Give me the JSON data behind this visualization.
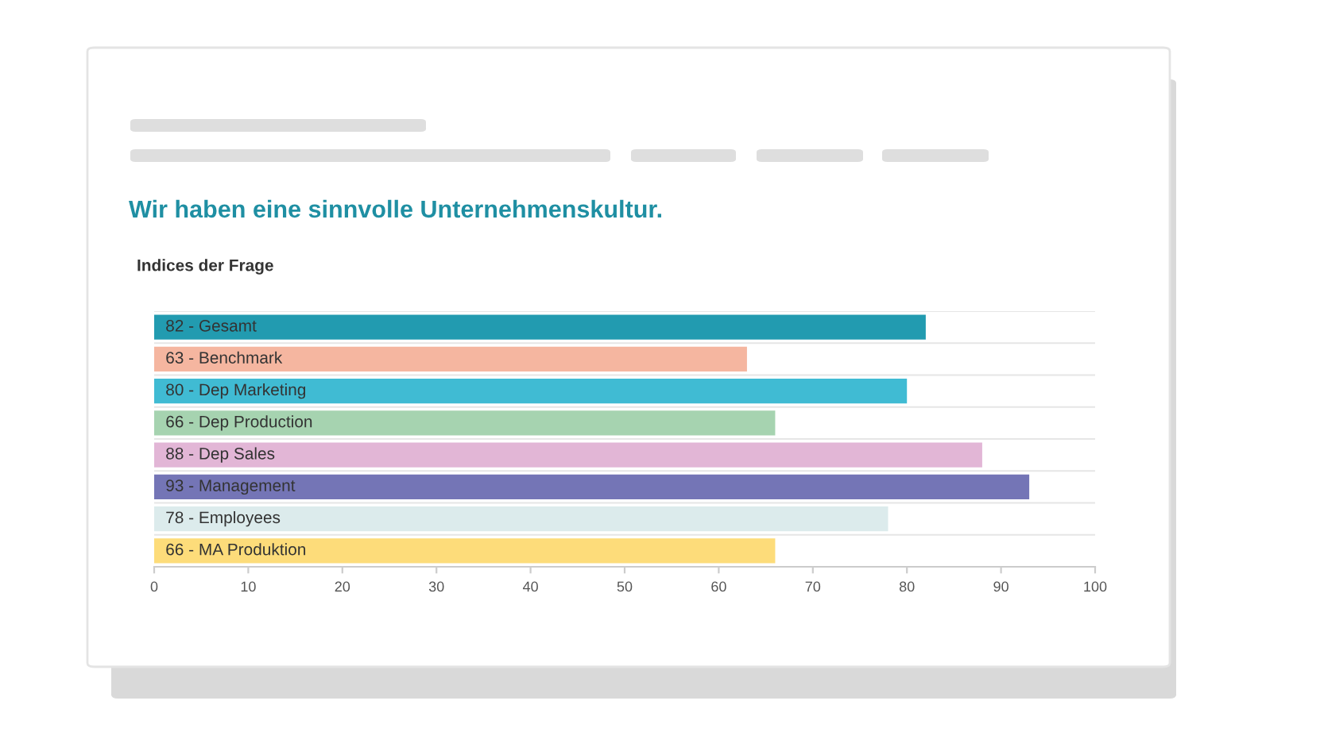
{
  "chart_data": {
    "type": "bar",
    "orientation": "horizontal",
    "title": "Wir haben eine sinnvolle Unternehmenskultur.",
    "subtitle": "Indices der Frage",
    "categories": [
      "82 - Gesamt",
      "63 - Benchmark",
      "80 - Dep Marketing",
      "66 - Dep Production",
      "88 - Dep Sales",
      "93 - Management",
      "78 - Employees",
      "66 - MA Produktion"
    ],
    "values": [
      82,
      63,
      80,
      66,
      88,
      93,
      78,
      66
    ],
    "colors": [
      "#229bb0",
      "#f5b6a0",
      "#40bbd3",
      "#a6d3b0",
      "#e2b6d6",
      "#7475b6",
      "#dcebec",
      "#fddc7a"
    ],
    "xlim": [
      0,
      100
    ],
    "xticks": [
      0,
      10,
      20,
      30,
      40,
      50,
      60,
      70,
      80,
      90,
      100
    ],
    "grid": "y",
    "tick_labels": "x"
  }
}
